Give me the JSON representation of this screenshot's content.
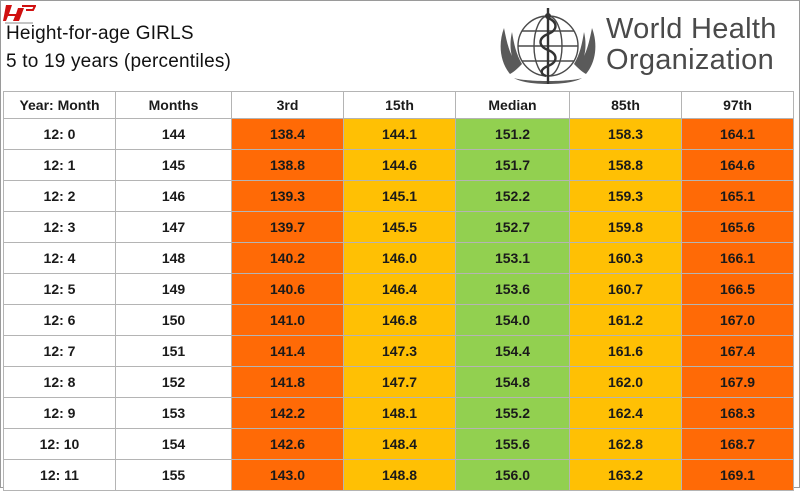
{
  "page": {
    "title": "Height-for-age GIRLS",
    "subtitle": "5 to 19 years (percentiles)",
    "org_line1": "World Health",
    "org_line2": "Organization",
    "colors": {
      "p3": "#ff6a06",
      "p15": "#ffc004",
      "median": "#92d050",
      "p85": "#ffc004",
      "p97": "#ff6a06"
    },
    "icons": {
      "emblem": "who-emblem-icon",
      "badge": "site-badge-icon"
    }
  },
  "table": {
    "headers": [
      "Year: Month",
      "Months",
      "3rd",
      "15th",
      "Median",
      "85th",
      "97th"
    ],
    "rows": [
      [
        "12: 0",
        "144",
        "138.4",
        "144.1",
        "151.2",
        "158.3",
        "164.1"
      ],
      [
        "12: 1",
        "145",
        "138.8",
        "144.6",
        "151.7",
        "158.8",
        "164.6"
      ],
      [
        "12: 2",
        "146",
        "139.3",
        "145.1",
        "152.2",
        "159.3",
        "165.1"
      ],
      [
        "12: 3",
        "147",
        "139.7",
        "145.5",
        "152.7",
        "159.8",
        "165.6"
      ],
      [
        "12: 4",
        "148",
        "140.2",
        "146.0",
        "153.1",
        "160.3",
        "166.1"
      ],
      [
        "12: 5",
        "149",
        "140.6",
        "146.4",
        "153.6",
        "160.7",
        "166.5"
      ],
      [
        "12: 6",
        "150",
        "141.0",
        "146.8",
        "154.0",
        "161.2",
        "167.0"
      ],
      [
        "12: 7",
        "151",
        "141.4",
        "147.3",
        "154.4",
        "161.6",
        "167.4"
      ],
      [
        "12: 8",
        "152",
        "141.8",
        "147.7",
        "154.8",
        "162.0",
        "167.9"
      ],
      [
        "12: 9",
        "153",
        "142.2",
        "148.1",
        "155.2",
        "162.4",
        "168.3"
      ],
      [
        "12: 10",
        "154",
        "142.6",
        "148.4",
        "155.6",
        "162.8",
        "168.7"
      ],
      [
        "12: 11",
        "155",
        "143.0",
        "148.8",
        "156.0",
        "163.2",
        "169.1"
      ]
    ]
  }
}
